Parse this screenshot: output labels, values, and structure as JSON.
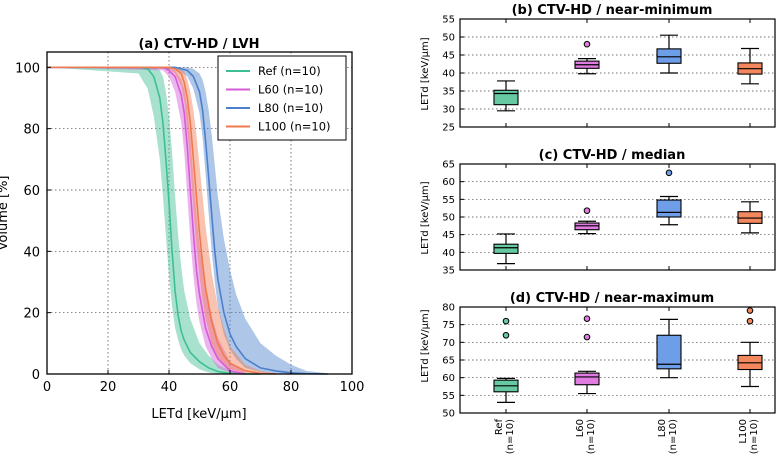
{
  "chart_data": [
    {
      "type": "line",
      "title": "(a) CTV-HD / LVH",
      "xlabel": "LETd [keV/μm]",
      "ylabel": "Volume [%]",
      "xlim": [
        0,
        100
      ],
      "ylim": [
        0,
        105
      ],
      "xticks": [
        "0",
        "20",
        "40",
        "60",
        "80",
        "100"
      ],
      "yticks": [
        "0",
        "20",
        "40",
        "60",
        "80",
        "100"
      ],
      "grid": true,
      "legend_position": "top-right",
      "series": [
        {
          "name": "Ref (n=10)",
          "color": "#3dbf93",
          "x": [
            0,
            30,
            33,
            35,
            37,
            38,
            39,
            40,
            41,
            42,
            43,
            44,
            45,
            47,
            50,
            53,
            56,
            60,
            65,
            70
          ],
          "y": [
            100,
            100,
            99.5,
            97,
            90,
            82,
            70,
            56,
            40,
            27,
            19,
            14,
            11,
            7,
            4,
            2,
            0.8,
            0.2,
            0,
            0
          ],
          "lower": [
            100,
            98,
            93,
            84,
            70,
            58,
            45,
            32,
            22,
            15,
            11,
            8,
            6,
            3.5,
            1.5,
            0.5,
            0.1,
            0,
            0,
            0
          ],
          "upper": [
            100,
            100,
            100,
            100,
            99,
            97,
            92,
            84,
            72,
            58,
            45,
            35,
            27,
            18,
            10,
            6,
            3,
            1,
            0.3,
            0
          ]
        },
        {
          "name": "L60 (n=10)",
          "color": "#d65bd6",
          "x": [
            0,
            38,
            40,
            42,
            44,
            45,
            46,
            47,
            48,
            49,
            50,
            52,
            54,
            56,
            60,
            65
          ],
          "y": [
            100,
            100,
            99,
            97,
            91,
            85,
            74,
            60,
            46,
            34,
            26,
            15,
            9,
            5,
            1,
            0
          ],
          "lower": [
            100,
            99,
            97,
            92,
            82,
            72,
            58,
            44,
            32,
            23,
            17,
            9,
            5,
            2,
            0.5,
            0
          ],
          "upper": [
            100,
            100,
            100,
            99,
            96,
            93,
            87,
            77,
            64,
            52,
            42,
            29,
            19,
            12,
            4,
            0.5
          ]
        },
        {
          "name": "L80 (n=10)",
          "color": "#4c80cc",
          "x": [
            0,
            42,
            44,
            46,
            48,
            50,
            51,
            52,
            53,
            54,
            55,
            56,
            58,
            60,
            62,
            65,
            70,
            75,
            80,
            85,
            92
          ],
          "y": [
            100,
            100,
            99.5,
            99,
            97,
            92,
            86,
            76,
            64,
            52,
            40,
            31,
            20,
            13,
            9,
            5,
            2,
            1,
            0.4,
            0.1,
            0
          ],
          "lower": [
            100,
            99.5,
            98.5,
            97,
            93,
            85,
            77,
            65,
            52,
            40,
            30,
            22,
            13,
            8,
            5,
            2,
            0.7,
            0.2,
            0,
            0,
            0
          ],
          "upper": [
            100,
            100,
            100,
            100,
            99.5,
            98,
            96,
            92,
            86,
            78,
            68,
            58,
            44,
            34,
            26,
            18,
            10,
            6,
            3,
            1,
            0.2
          ]
        },
        {
          "name": "L100 (n=10)",
          "color": "#f07a4f",
          "x": [
            0,
            40,
            42,
            44,
            45,
            46,
            47,
            48,
            49,
            50,
            51,
            52,
            54,
            56,
            58,
            60,
            65,
            70,
            75
          ],
          "y": [
            100,
            100,
            99.5,
            98,
            95,
            90,
            82,
            70,
            58,
            46,
            36,
            28,
            17,
            10,
            6,
            3.5,
            1,
            0.2,
            0
          ],
          "lower": [
            100,
            99.5,
            98,
            94,
            89,
            80,
            68,
            54,
            42,
            32,
            24,
            18,
            10,
            5,
            3,
            1.5,
            0.3,
            0,
            0
          ],
          "upper": [
            100,
            100,
            100,
            99.5,
            98.5,
            96,
            92,
            86,
            78,
            68,
            58,
            48,
            33,
            22,
            15,
            9,
            3,
            1,
            0.2
          ]
        }
      ]
    },
    {
      "type": "box",
      "title": "(b) CTV-HD / near-minimum",
      "ylabel": "LETd [keV/μm]",
      "ylim": [
        25,
        55
      ],
      "yticks": [
        "25",
        "30",
        "35",
        "40",
        "45",
        "50",
        "55"
      ],
      "grid": true,
      "boxes": [
        {
          "name": "Ref",
          "color": "#66c9a2",
          "min": 29.5,
          "q1": 31.2,
          "median": 34.3,
          "q3": 35.2,
          "max": 37.8,
          "outliers": []
        },
        {
          "name": "L60",
          "color": "#e07be0",
          "min": 39.8,
          "q1": 41.3,
          "median": 42.3,
          "q3": 43.3,
          "max": 44.0,
          "outliers": [
            48.0
          ]
        },
        {
          "name": "L80",
          "color": "#6f9ee8",
          "min": 40.0,
          "q1": 42.7,
          "median": 44.5,
          "q3": 46.7,
          "max": 50.5,
          "outliers": []
        },
        {
          "name": "L100",
          "color": "#f3875d",
          "min": 37.0,
          "q1": 39.7,
          "median": 41.2,
          "q3": 42.8,
          "max": 46.8,
          "outliers": []
        }
      ]
    },
    {
      "type": "box",
      "title": "(c) CTV-HD / median",
      "ylabel": "LETd [keV/μm]",
      "ylim": [
        35,
        65
      ],
      "yticks": [
        "35",
        "40",
        "45",
        "50",
        "55",
        "60",
        "65"
      ],
      "grid": true,
      "boxes": [
        {
          "name": "Ref",
          "color": "#66c9a2",
          "min": 36.8,
          "q1": 39.7,
          "median": 41.3,
          "q3": 42.3,
          "max": 45.2,
          "outliers": []
        },
        {
          "name": "L60",
          "color": "#e07be0",
          "min": 45.3,
          "q1": 46.4,
          "median": 47.5,
          "q3": 48.3,
          "max": 48.8,
          "outliers": [
            51.8
          ]
        },
        {
          "name": "L80",
          "color": "#6f9ee8",
          "min": 47.8,
          "q1": 50.0,
          "median": 51.3,
          "q3": 54.8,
          "max": 55.8,
          "outliers": [
            62.5
          ]
        },
        {
          "name": "L100",
          "color": "#f3875d",
          "min": 45.5,
          "q1": 48.2,
          "median": 49.7,
          "q3": 51.5,
          "max": 54.3,
          "outliers": []
        }
      ]
    },
    {
      "type": "box",
      "title": "(d) CTV-HD / near-maximum",
      "ylabel": "LETd [keV/μm]",
      "ylim": [
        50,
        80
      ],
      "yticks": [
        "50",
        "55",
        "60",
        "65",
        "70",
        "75",
        "80"
      ],
      "xticks": [
        "Ref\n(n=10)",
        "L60\n(n=10)",
        "L80\n(n=10)",
        "L100\n(n=10)"
      ],
      "grid": true,
      "boxes": [
        {
          "name": "Ref",
          "color": "#66c9a2",
          "min": 53.0,
          "q1": 56.0,
          "median": 57.7,
          "q3": 59.3,
          "max": 59.8,
          "outliers": [
            72.0,
            76.0
          ]
        },
        {
          "name": "L60",
          "color": "#e07be0",
          "min": 55.5,
          "q1": 58.0,
          "median": 60.2,
          "q3": 61.3,
          "max": 61.8,
          "outliers": [
            71.5,
            76.7
          ]
        },
        {
          "name": "L80",
          "color": "#6f9ee8",
          "min": 60.0,
          "q1": 62.5,
          "median": 63.8,
          "q3": 72.0,
          "max": 76.5,
          "outliers": []
        },
        {
          "name": "L100",
          "color": "#f3875d",
          "min": 57.5,
          "q1": 62.3,
          "median": 64.2,
          "q3": 66.3,
          "max": 70.0,
          "outliers": [
            76.0,
            79.0
          ]
        }
      ]
    }
  ]
}
